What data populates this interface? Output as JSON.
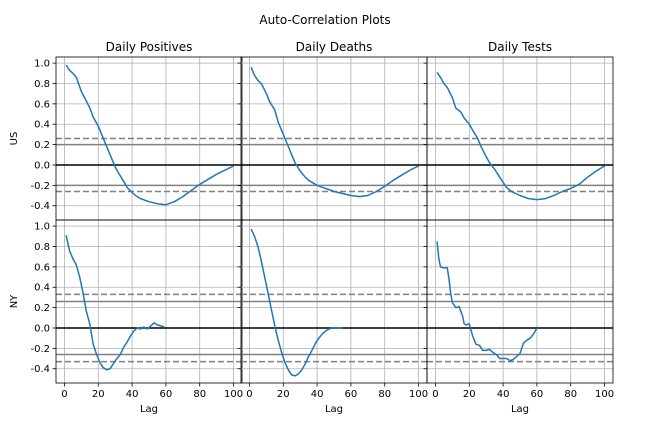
{
  "suptitle": "Auto-Correlation Plots",
  "chart_data": {
    "type": "line",
    "layout": "2 rows x 3 columns, shared axes",
    "x_ticks": [
      0,
      20,
      40,
      60,
      80,
      100
    ],
    "y_ticks": [
      -0.4,
      -0.2,
      0.0,
      0.2,
      0.4,
      0.6,
      0.8,
      1.0
    ],
    "xlim": [
      -5,
      105
    ],
    "ylim": [
      -0.54,
      1.06
    ],
    "grid": true,
    "colors": {
      "acf_line": "#1f77b4",
      "conf_dashed": "#808080",
      "conf_solid": "#808080",
      "zero_line": "#000000",
      "grid": "#b0b0b0"
    },
    "columns": [
      "Daily Positives",
      "Daily Deaths",
      "Daily Tests"
    ],
    "rows": [
      "US",
      "NY"
    ],
    "xlabel": "Lag",
    "panels": [
      {
        "row": "US",
        "column": "Daily Positives",
        "conf_dashed": 0.26,
        "conf_solid": 0.2,
        "x": [
          1,
          3,
          5,
          7,
          10,
          12,
          15,
          17,
          20,
          22,
          25,
          27,
          30,
          32,
          35,
          37,
          40,
          42,
          45,
          50,
          55,
          60,
          65,
          70,
          75,
          80,
          85,
          90,
          95,
          100
        ],
        "y": [
          0.98,
          0.93,
          0.9,
          0.86,
          0.72,
          0.66,
          0.56,
          0.47,
          0.38,
          0.3,
          0.18,
          0.1,
          -0.02,
          -0.08,
          -0.16,
          -0.22,
          -0.27,
          -0.3,
          -0.33,
          -0.36,
          -0.38,
          -0.39,
          -0.36,
          -0.31,
          -0.25,
          -0.19,
          -0.14,
          -0.09,
          -0.05,
          -0.01
        ]
      },
      {
        "row": "US",
        "column": "Daily Deaths",
        "conf_dashed": 0.26,
        "conf_solid": 0.2,
        "x": [
          1,
          3,
          5,
          7,
          10,
          12,
          15,
          17,
          20,
          22,
          25,
          27,
          30,
          33,
          35,
          38,
          40,
          45,
          50,
          55,
          60,
          65,
          70,
          75,
          80,
          85,
          90,
          95,
          100
        ],
        "y": [
          0.96,
          0.88,
          0.83,
          0.8,
          0.7,
          0.62,
          0.54,
          0.42,
          0.3,
          0.22,
          0.1,
          0.02,
          -0.06,
          -0.12,
          -0.15,
          -0.18,
          -0.2,
          -0.23,
          -0.26,
          -0.28,
          -0.3,
          -0.31,
          -0.3,
          -0.26,
          -0.21,
          -0.15,
          -0.1,
          -0.05,
          -0.01
        ]
      },
      {
        "row": "US",
        "column": "Daily Tests",
        "conf_dashed": 0.26,
        "conf_solid": 0.2,
        "x": [
          1,
          3,
          5,
          7,
          10,
          12,
          15,
          17,
          20,
          22,
          25,
          27,
          30,
          32,
          35,
          38,
          40,
          42,
          45,
          50,
          55,
          60,
          65,
          70,
          75,
          80,
          85,
          90,
          95,
          100
        ],
        "y": [
          0.91,
          0.86,
          0.8,
          0.76,
          0.66,
          0.56,
          0.52,
          0.46,
          0.4,
          0.34,
          0.26,
          0.18,
          0.08,
          0.02,
          -0.04,
          -0.12,
          -0.17,
          -0.22,
          -0.26,
          -0.3,
          -0.33,
          -0.34,
          -0.33,
          -0.3,
          -0.26,
          -0.23,
          -0.19,
          -0.12,
          -0.06,
          -0.01
        ]
      },
      {
        "row": "NY",
        "column": "Daily Positives",
        "conf_dashed": 0.33,
        "conf_solid": 0.26,
        "x": [
          1,
          3,
          5,
          7,
          9,
          11,
          13,
          15,
          17,
          19,
          21,
          23,
          25,
          27,
          29,
          31,
          33,
          35,
          37,
          39,
          41,
          43,
          45,
          47,
          49,
          51,
          53,
          55,
          57,
          59
        ],
        "y": [
          0.91,
          0.76,
          0.68,
          0.62,
          0.5,
          0.34,
          0.16,
          0.04,
          -0.16,
          -0.26,
          -0.34,
          -0.39,
          -0.41,
          -0.4,
          -0.35,
          -0.3,
          -0.26,
          -0.19,
          -0.14,
          -0.08,
          -0.03,
          0.0,
          -0.01,
          0.01,
          -0.01,
          0.02,
          0.05,
          0.03,
          0.02,
          0.01
        ]
      },
      {
        "row": "NY",
        "column": "Daily Deaths",
        "conf_dashed": 0.33,
        "conf_solid": 0.26,
        "x": [
          1,
          3,
          5,
          7,
          9,
          11,
          13,
          15,
          17,
          19,
          21,
          23,
          25,
          27,
          29,
          31,
          33,
          35,
          37,
          39,
          41,
          43,
          45,
          47,
          49,
          51,
          53,
          55
        ],
        "y": [
          0.97,
          0.9,
          0.8,
          0.66,
          0.5,
          0.34,
          0.18,
          0.02,
          -0.12,
          -0.24,
          -0.34,
          -0.41,
          -0.46,
          -0.47,
          -0.45,
          -0.41,
          -0.35,
          -0.28,
          -0.22,
          -0.15,
          -0.1,
          -0.06,
          -0.03,
          -0.01,
          0.0,
          0.0,
          0.0,
          0.0
        ]
      },
      {
        "row": "NY",
        "column": "Daily Tests",
        "conf_dashed": 0.33,
        "conf_solid": 0.26,
        "x": [
          1,
          2,
          3,
          5,
          7,
          8,
          9,
          10,
          12,
          14,
          16,
          17,
          18,
          20,
          22,
          24,
          26,
          28,
          30,
          32,
          34,
          36,
          38,
          40,
          42,
          44,
          46,
          48,
          50,
          52,
          54,
          56,
          58,
          60
        ],
        "y": [
          0.85,
          0.68,
          0.6,
          0.59,
          0.59,
          0.48,
          0.34,
          0.25,
          0.2,
          0.21,
          0.12,
          0.04,
          0.03,
          0.04,
          -0.08,
          -0.16,
          -0.17,
          -0.22,
          -0.22,
          -0.21,
          -0.24,
          -0.26,
          -0.3,
          -0.3,
          -0.3,
          -0.32,
          -0.31,
          -0.28,
          -0.25,
          -0.15,
          -0.12,
          -0.1,
          -0.06,
          0.0
        ]
      }
    ]
  }
}
